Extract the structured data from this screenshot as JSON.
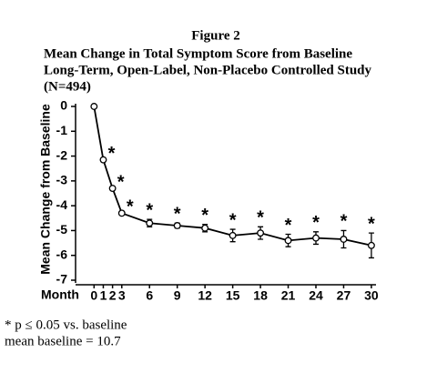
{
  "chart_data": {
    "type": "line",
    "title": "Figure 2",
    "subtitle": [
      "Mean Change in Total Symptom Score from Baseline",
      "Long-Term, Open-Label, Non-Placebo Controlled Study",
      "(N=494)"
    ],
    "y_label": "Mean Change from Baseline",
    "x_label": "Month",
    "x": [
      0,
      1,
      2,
      3,
      6,
      9,
      12,
      15,
      18,
      21,
      24,
      27,
      30
    ],
    "series": [
      {
        "color": "#000000",
        "values": [
          0,
          -2.15,
          -3.3,
          -4.3,
          -4.7,
          -4.8,
          -4.9,
          -5.2,
          -5.1,
          -5.4,
          -5.3,
          -5.35,
          -5.6
        ],
        "errors": [
          null,
          null,
          null,
          null,
          0.15,
          0.1,
          0.15,
          0.25,
          0.25,
          0.25,
          0.25,
          0.35,
          0.5
        ],
        "markers": [
          null,
          "*",
          "*",
          "*",
          "*",
          "*",
          "*",
          "*",
          "*",
          "*",
          "*",
          "*",
          "*"
        ]
      }
    ],
    "xlim": [
      -2,
      30.5
    ],
    "xticks": [
      0,
      1,
      2,
      3,
      6,
      9,
      12,
      15,
      18,
      21,
      24,
      27,
      30
    ],
    "ylim": [
      -7,
      0
    ],
    "yticks": [
      0,
      -1,
      -2,
      -3,
      -4,
      -5,
      -6,
      -7
    ],
    "footnotes": [
      "* p ≤ 0.05 vs. baseline",
      "mean baseline = 10.7"
    ]
  }
}
